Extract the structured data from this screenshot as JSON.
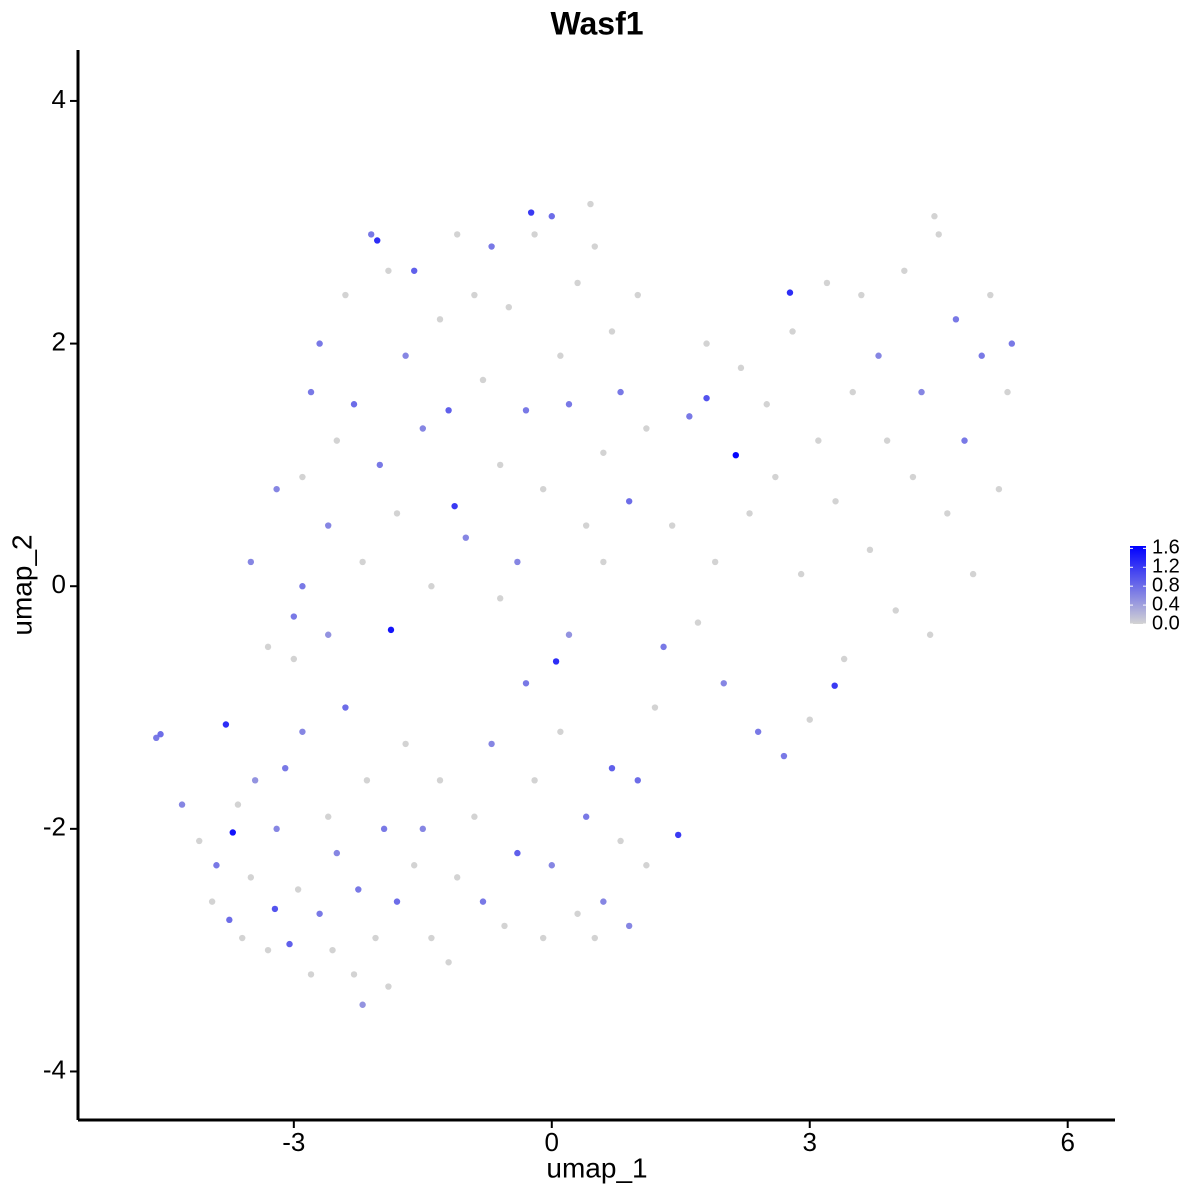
{
  "chart_data": {
    "type": "scatter",
    "title": "Wasf1",
    "x_label": "umap_1",
    "y_label": "umap_2",
    "xlim": [
      -5.51,
      6.55
    ],
    "ylim": [
      -4.4,
      4.42
    ],
    "xticks": [
      -3,
      0,
      3,
      6
    ],
    "yticks": [
      -4,
      -2,
      0,
      2,
      4
    ],
    "colors": [
      "#d3d3d3",
      "#0000ff"
    ],
    "color_lim": [
      0,
      1.65
    ],
    "color_ticks": [
      {
        "value": 0,
        "label": "0.0"
      },
      {
        "value": 0.4,
        "label": "0.4"
      },
      {
        "value": 0.8,
        "label": "0.8"
      },
      {
        "value": 1.2,
        "label": "1.2"
      },
      {
        "value": 1.6,
        "label": "1.6"
      }
    ],
    "points": [
      [
        -4.6,
        -1.25,
        0.7
      ],
      [
        -4.55,
        -1.22,
        0.8
      ],
      [
        -4.3,
        -1.8,
        0.6
      ],
      [
        -4.1,
        -2.1,
        0
      ],
      [
        -3.95,
        -2.6,
        0
      ],
      [
        -3.9,
        -2.3,
        0.7
      ],
      [
        -3.75,
        -2.75,
        0.8
      ],
      [
        -3.6,
        -2.9,
        0
      ],
      [
        -3.5,
        -2.4,
        0
      ],
      [
        -3.45,
        -1.6,
        0.5
      ],
      [
        -3.3,
        -3.0,
        0
      ],
      [
        -3.2,
        -2.0,
        0.6
      ],
      [
        -3.1,
        -1.5,
        0.7
      ],
      [
        -3.05,
        -2.95,
        0.9
      ],
      [
        -2.95,
        -2.5,
        0
      ],
      [
        -2.9,
        -1.2,
        0.6
      ],
      [
        -2.8,
        -3.2,
        0
      ],
      [
        -2.7,
        -2.7,
        0.7
      ],
      [
        -2.6,
        -1.9,
        0
      ],
      [
        -2.55,
        -3.0,
        0
      ],
      [
        -2.5,
        -2.2,
        0.6
      ],
      [
        -2.4,
        -1.0,
        0.8
      ],
      [
        -2.3,
        -3.2,
        0
      ],
      [
        -2.25,
        -2.5,
        0.7
      ],
      [
        -2.2,
        -3.45,
        0.5
      ],
      [
        -2.15,
        -1.6,
        0
      ],
      [
        -2.05,
        -2.9,
        0
      ],
      [
        -1.95,
        -2.0,
        0.7
      ],
      [
        -1.9,
        -3.3,
        0
      ],
      [
        -1.8,
        -2.6,
        0.8
      ],
      [
        -1.7,
        -1.3,
        0
      ],
      [
        -1.6,
        -2.3,
        0
      ],
      [
        -1.5,
        -2.0,
        0.6
      ],
      [
        -1.4,
        -2.9,
        0
      ],
      [
        -1.3,
        -1.6,
        0
      ],
      [
        -1.2,
        -3.1,
        0
      ],
      [
        -1.1,
        -2.4,
        0
      ],
      [
        -3.65,
        -1.8,
        0
      ],
      [
        -3.0,
        -0.6,
        0
      ],
      [
        -2.6,
        -0.4,
        0.5
      ],
      [
        -0.9,
        -1.9,
        0
      ],
      [
        -0.8,
        -2.6,
        0.7
      ],
      [
        -0.7,
        -1.3,
        0.6
      ],
      [
        -0.55,
        -2.8,
        0
      ],
      [
        -0.4,
        -2.2,
        0.9
      ],
      [
        -0.3,
        -0.8,
        0.7
      ],
      [
        -0.2,
        -1.6,
        0
      ],
      [
        -0.1,
        -2.9,
        0
      ],
      [
        0.0,
        -2.3,
        0.6
      ],
      [
        0.1,
        -1.2,
        0
      ],
      [
        0.2,
        -0.4,
        0.5
      ],
      [
        0.3,
        -2.7,
        0
      ],
      [
        0.4,
        -1.9,
        0.7
      ],
      [
        0.5,
        -2.9,
        0
      ],
      [
        0.6,
        -2.6,
        0.6
      ],
      [
        0.7,
        -1.5,
        0.9
      ],
      [
        0.8,
        -2.1,
        0
      ],
      [
        0.9,
        -2.8,
        0.6
      ],
      [
        1.0,
        -1.6,
        0.8
      ],
      [
        1.1,
        -2.3,
        0
      ],
      [
        1.2,
        -1.0,
        0
      ],
      [
        -0.6,
        -0.1,
        0
      ],
      [
        0.6,
        0.2,
        0
      ],
      [
        1.3,
        -0.5,
        0.7
      ],
      [
        -3.0,
        -0.25,
        0.7
      ],
      [
        -3.5,
        0.2,
        0.6
      ],
      [
        -3.2,
        0.8,
        0.6
      ],
      [
        -2.9,
        0.9,
        0
      ],
      [
        -2.8,
        1.6,
        0.7
      ],
      [
        -2.7,
        2.0,
        0.7
      ],
      [
        -2.6,
        0.5,
        0.6
      ],
      [
        -2.5,
        1.2,
        0
      ],
      [
        -2.4,
        2.4,
        0
      ],
      [
        -2.3,
        1.5,
        0.8
      ],
      [
        -2.2,
        0.2,
        0
      ],
      [
        -2.1,
        2.9,
        0.7
      ],
      [
        -2.0,
        1.0,
        0.7
      ],
      [
        -1.9,
        2.6,
        0
      ],
      [
        -1.8,
        0.6,
        0
      ],
      [
        -1.7,
        1.9,
        0.6
      ],
      [
        -1.6,
        2.6,
        0.9
      ],
      [
        -1.5,
        1.3,
        0.6
      ],
      [
        -1.4,
        0.0,
        0
      ],
      [
        -1.3,
        2.2,
        0
      ],
      [
        -1.2,
        1.45,
        0.9
      ],
      [
        -1.1,
        2.9,
        0
      ],
      [
        -1.0,
        0.4,
        0.6
      ],
      [
        -0.9,
        2.4,
        0
      ],
      [
        -0.8,
        1.7,
        0
      ],
      [
        -0.7,
        2.8,
        0.7
      ],
      [
        -0.6,
        1.0,
        0
      ],
      [
        -0.5,
        2.3,
        0
      ],
      [
        -0.4,
        0.2,
        0.6
      ],
      [
        -0.3,
        1.45,
        0.7
      ],
      [
        -0.2,
        2.9,
        0
      ],
      [
        -0.1,
        0.8,
        0
      ],
      [
        0.0,
        3.05,
        0.8
      ],
      [
        0.1,
        1.9,
        0
      ],
      [
        0.2,
        1.5,
        0.7
      ],
      [
        0.3,
        2.5,
        0
      ],
      [
        0.4,
        0.5,
        0
      ],
      [
        0.5,
        2.8,
        0
      ],
      [
        0.6,
        1.1,
        0
      ],
      [
        0.7,
        2.1,
        0
      ],
      [
        0.8,
        1.6,
        0.7
      ],
      [
        0.9,
        0.7,
        0.8
      ],
      [
        1.0,
        2.4,
        0
      ],
      [
        1.1,
        1.3,
        0
      ],
      [
        0.45,
        3.15,
        0
      ],
      [
        -2.9,
        0.0,
        0.7
      ],
      [
        -3.3,
        -0.5,
        0
      ],
      [
        1.4,
        0.5,
        0
      ],
      [
        1.6,
        1.4,
        0.7
      ],
      [
        1.7,
        -0.3,
        0
      ],
      [
        1.8,
        2.0,
        0
      ],
      [
        1.9,
        0.2,
        0
      ],
      [
        2.0,
        -0.8,
        0.6
      ],
      [
        2.2,
        1.8,
        0
      ],
      [
        2.3,
        0.6,
        0
      ],
      [
        2.4,
        -1.2,
        0.7
      ],
      [
        2.5,
        1.5,
        0
      ],
      [
        2.6,
        0.9,
        0
      ],
      [
        2.7,
        -1.4,
        0.7
      ],
      [
        2.8,
        2.1,
        0
      ],
      [
        2.9,
        0.1,
        0
      ],
      [
        3.0,
        -1.1,
        0
      ],
      [
        3.1,
        1.2,
        0
      ],
      [
        3.2,
        2.5,
        0
      ],
      [
        3.3,
        0.7,
        0
      ],
      [
        3.4,
        -0.6,
        0
      ],
      [
        3.5,
        1.6,
        0
      ],
      [
        3.6,
        2.4,
        0
      ],
      [
        3.7,
        0.3,
        0
      ],
      [
        3.8,
        1.9,
        0.6
      ],
      [
        3.9,
        1.2,
        0
      ],
      [
        4.0,
        -0.2,
        0
      ],
      [
        4.1,
        2.6,
        0
      ],
      [
        4.2,
        0.9,
        0
      ],
      [
        4.3,
        1.6,
        0.6
      ],
      [
        4.4,
        -0.4,
        0
      ],
      [
        4.5,
        2.9,
        0
      ],
      [
        4.6,
        0.6,
        0
      ],
      [
        4.7,
        2.2,
        0.7
      ],
      [
        4.8,
        1.2,
        0.7
      ],
      [
        4.9,
        0.1,
        0
      ],
      [
        5.0,
        1.9,
        0.7
      ],
      [
        5.1,
        2.4,
        0
      ],
      [
        5.2,
        0.8,
        0
      ],
      [
        5.3,
        1.6,
        0
      ],
      [
        5.35,
        2.0,
        0.7
      ],
      [
        4.45,
        3.05,
        0
      ],
      [
        1.8,
        1.55,
        1.0
      ],
      [
        2.14,
        1.08,
        1.6
      ],
      [
        -1.87,
        -0.36,
        1.5
      ],
      [
        -3.71,
        -2.03,
        1.5
      ],
      [
        0.05,
        -0.62,
        1.3
      ],
      [
        2.77,
        2.42,
        1.3
      ],
      [
        -2.03,
        2.85,
        1.3
      ],
      [
        -0.24,
        3.08,
        1.2
      ],
      [
        -3.79,
        -1.14,
        1.3
      ],
      [
        -1.13,
        0.66,
        1.2
      ],
      [
        1.47,
        -2.05,
        1.2
      ],
      [
        3.29,
        -0.82,
        1.2
      ],
      [
        -3.22,
        -2.66,
        1.0
      ]
    ]
  }
}
